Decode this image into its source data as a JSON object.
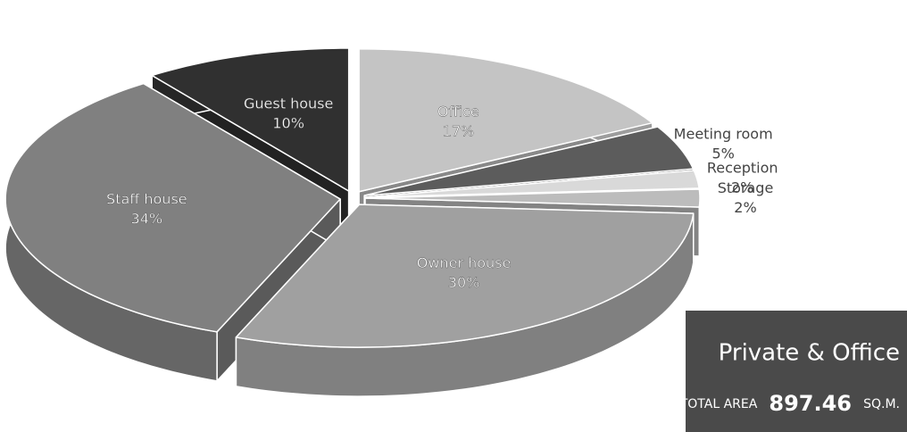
{
  "chart_data": {
    "type": "pie",
    "categories": [
      "Office",
      "Meeting room",
      "Reception",
      "Storage",
      "Owner house",
      "Staff house",
      "Guest house"
    ],
    "values": [
      17,
      5,
      2,
      2,
      30,
      34,
      10
    ],
    "value_labels": [
      "17%",
      "5%",
      "2%",
      "2%",
      "30%",
      "34%",
      "10%"
    ],
    "colors": [
      "#c4c4c4",
      "#5c5c5c",
      "#d9d9d9",
      "#bcbcbc",
      "#a0a0a0",
      "#808080",
      "#303030"
    ],
    "annotation": {
      "title": "Private & Office",
      "total_label": "TOTAL AREA",
      "total_value": 897.46,
      "total_unit": "SQ.M."
    }
  }
}
